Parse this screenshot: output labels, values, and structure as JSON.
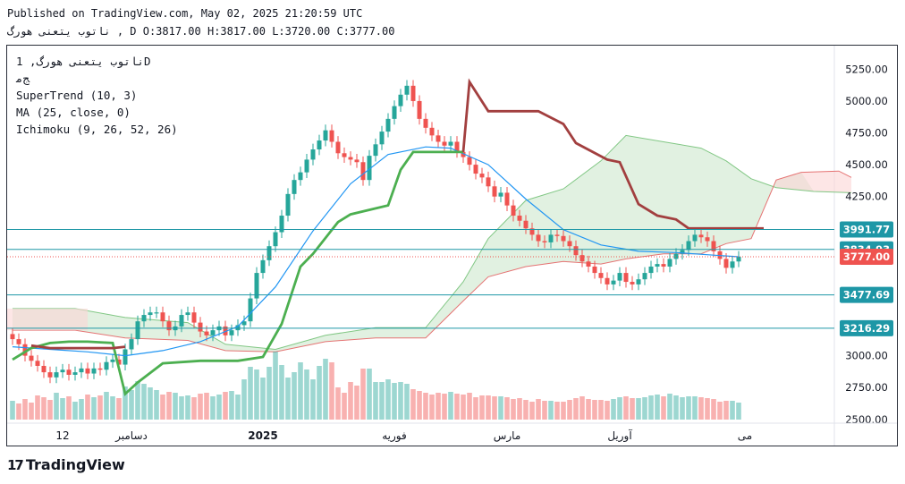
{
  "header": {
    "published": "Published on TradingView.com, May 02, 2025 21:20:59 UTC",
    "ohlc_line": "ناتوب يتعنی هورگ , D O:3817.00 H:3817.00 L:3720.00 C:3777.00"
  },
  "legend": {
    "symbol": "ناتوب يتعنی هورگ, 1D",
    "exchange": "ﺞﻣ",
    "supertrend": "SuperTrend (10, 3)",
    "ma": "MA (25, close, 0)",
    "ichimoku": "Ichimoku (9, 26, 52, 26)"
  },
  "brand": {
    "logo": "17",
    "name": "TradingView"
  },
  "colors": {
    "up": "#26a69a",
    "down": "#ef5350",
    "supertrend_up": "#4caf50",
    "supertrend_down": "#a23f3f",
    "ma": "#2196f3",
    "hline": "#1e97a6",
    "cloud_bull": "#c8e6c9",
    "cloud_bear": "#fbd5d5"
  },
  "chart_data": {
    "type": "candlestick",
    "y_axis": {
      "min": 2400,
      "max": 5400,
      "ticks": [
        2500,
        2750,
        3000,
        3250,
        3500,
        3750,
        4000,
        4250,
        4500,
        4750,
        5000,
        5250
      ]
    },
    "tick_labels": [
      "2500.00",
      "2750.00",
      "3000.00",
      "3250.00",
      "3500.00",
      "3750.00",
      "4000.00",
      "4250.00",
      "4500.00",
      "4750.00",
      "5000.00",
      "5250.00"
    ],
    "x_labels": [
      {
        "text": "12",
        "i": 8
      },
      {
        "text": "دسامبر",
        "i": 19
      },
      {
        "text": "2025",
        "i": 40
      },
      {
        "text": "فوریه",
        "i": 61
      },
      {
        "text": "مارس",
        "i": 79
      },
      {
        "text": "آوریل",
        "i": 97
      },
      {
        "text": "می",
        "i": 117
      }
    ],
    "horizontal_levels": [
      {
        "value": 3991.77,
        "label": "3991.77"
      },
      {
        "value": 3834.93,
        "label": "3834.93"
      },
      {
        "value": 3477.69,
        "label": "3477.69"
      },
      {
        "value": 3216.29,
        "label": "3216.29"
      }
    ],
    "last_price": {
      "value": 3777.0,
      "label": "3777.00"
    },
    "closes": [
      3130,
      3090,
      3000,
      2960,
      2920,
      2870,
      2830,
      2870,
      2890,
      2850,
      2870,
      2900,
      2860,
      2900,
      2890,
      2950,
      2970,
      2930,
      3050,
      3130,
      3270,
      3320,
      3340,
      3340,
      3270,
      3200,
      3230,
      3320,
      3340,
      3260,
      3190,
      3160,
      3200,
      3230,
      3160,
      3200,
      3240,
      3270,
      3450,
      3650,
      3750,
      3860,
      3970,
      4100,
      4270,
      4380,
      4440,
      4540,
      4620,
      4690,
      4770,
      4680,
      4590,
      4560,
      4540,
      4520,
      4380,
      4570,
      4660,
      4760,
      4860,
      4960,
      5050,
      5120,
      5000,
      4860,
      4790,
      4730,
      4680,
      4650,
      4680,
      4600,
      4560,
      4500,
      4430,
      4400,
      4330,
      4250,
      4280,
      4180,
      4100,
      4060,
      4000,
      3950,
      3900,
      3890,
      3950,
      3940,
      3900,
      3860,
      3790,
      3740,
      3700,
      3650,
      3610,
      3560,
      3590,
      3650,
      3580,
      3560,
      3600,
      3650,
      3700,
      3720,
      3700,
      3760,
      3800,
      3830,
      3900,
      3950,
      3930,
      3900,
      3820,
      3760,
      3690,
      3740,
      3777
    ],
    "volumes": [
      210,
      180,
      230,
      190,
      270,
      250,
      220,
      300,
      240,
      260,
      200,
      230,
      280,
      250,
      270,
      310,
      260,
      240,
      370,
      330,
      430,
      400,
      360,
      330,
      280,
      310,
      300,
      260,
      270,
      250,
      290,
      300,
      260,
      280,
      310,
      320,
      280,
      450,
      590,
      560,
      470,
      590,
      760,
      610,
      470,
      530,
      640,
      560,
      450,
      600,
      680,
      640,
      360,
      300,
      420,
      380,
      570,
      570,
      420,
      420,
      450,
      410,
      420,
      400,
      340,
      320,
      300,
      280,
      300,
      290,
      310,
      290,
      280,
      300,
      250,
      270,
      270,
      260,
      260,
      250,
      230,
      240,
      220,
      200,
      230,
      210,
      210,
      200,
      200,
      220,
      240,
      260,
      230,
      220,
      220,
      210,
      230,
      250,
      260,
      240,
      240,
      250,
      270,
      280,
      260,
      290,
      270,
      250,
      260,
      260,
      250,
      240,
      230,
      200,
      210,
      210,
      190
    ],
    "ma25_points": [
      [
        0,
        3070
      ],
      [
        6,
        3050
      ],
      [
        12,
        3030
      ],
      [
        18,
        3000
      ],
      [
        24,
        3040
      ],
      [
        30,
        3110
      ],
      [
        36,
        3230
      ],
      [
        42,
        3540
      ],
      [
        48,
        3980
      ],
      [
        54,
        4350
      ],
      [
        60,
        4580
      ],
      [
        66,
        4640
      ],
      [
        70,
        4630
      ],
      [
        76,
        4500
      ],
      [
        82,
        4230
      ],
      [
        88,
        3990
      ],
      [
        94,
        3870
      ],
      [
        100,
        3820
      ],
      [
        106,
        3810
      ],
      [
        112,
        3790
      ],
      [
        116,
        3777
      ]
    ],
    "supertrend_up_points": [
      [
        0,
        2970
      ],
      [
        3,
        3060
      ],
      [
        6,
        3100
      ],
      [
        9,
        3110
      ],
      [
        12,
        3110
      ],
      [
        16,
        3100
      ],
      [
        18,
        2700
      ],
      [
        20,
        2790
      ],
      [
        24,
        2940
      ],
      [
        30,
        2960
      ],
      [
        36,
        2960
      ],
      [
        40,
        2990
      ],
      [
        43,
        3250
      ],
      [
        46,
        3700
      ],
      [
        48,
        3800
      ],
      [
        52,
        4050
      ],
      [
        54,
        4110
      ],
      [
        60,
        4180
      ],
      [
        62,
        4460
      ],
      [
        64,
        4600
      ],
      [
        72,
        4600
      ]
    ],
    "supertrend_down_points": [
      [
        3,
        3080
      ],
      [
        6,
        3060
      ],
      [
        16,
        3060
      ],
      [
        18,
        3070
      ]
    ],
    "supertrend_down2_points": [
      [
        72,
        4600
      ],
      [
        73,
        5150
      ],
      [
        76,
        4920
      ],
      [
        84,
        4920
      ],
      [
        88,
        4820
      ],
      [
        90,
        4670
      ],
      [
        95,
        4540
      ],
      [
        97,
        4520
      ],
      [
        100,
        4190
      ],
      [
        103,
        4100
      ],
      [
        106,
        4070
      ],
      [
        108,
        4000
      ],
      [
        120,
        4000
      ]
    ],
    "cloud_a_points": [
      [
        0,
        3370
      ],
      [
        10,
        3370
      ],
      [
        18,
        3300
      ],
      [
        28,
        3260
      ],
      [
        34,
        3090
      ],
      [
        42,
        3050
      ],
      [
        50,
        3160
      ],
      [
        58,
        3220
      ],
      [
        66,
        3220
      ],
      [
        72,
        3580
      ],
      [
        76,
        3920
      ],
      [
        82,
        4220
      ],
      [
        88,
        4310
      ],
      [
        94,
        4530
      ],
      [
        98,
        4730
      ],
      [
        104,
        4680
      ],
      [
        110,
        4630
      ],
      [
        114,
        4530
      ],
      [
        118,
        4390
      ],
      [
        122,
        4320
      ],
      [
        128,
        4290
      ],
      [
        134,
        4280
      ]
    ],
    "cloud_b_points": [
      [
        0,
        3200
      ],
      [
        10,
        3200
      ],
      [
        18,
        3140
      ],
      [
        28,
        3120
      ],
      [
        34,
        3040
      ],
      [
        42,
        3030
      ],
      [
        50,
        3110
      ],
      [
        58,
        3140
      ],
      [
        66,
        3140
      ],
      [
        72,
        3430
      ],
      [
        76,
        3620
      ],
      [
        82,
        3700
      ],
      [
        88,
        3740
      ],
      [
        94,
        3720
      ],
      [
        98,
        3760
      ],
      [
        104,
        3800
      ],
      [
        110,
        3800
      ],
      [
        114,
        3880
      ],
      [
        118,
        3920
      ],
      [
        122,
        4380
      ],
      [
        126,
        4440
      ],
      [
        132,
        4450
      ],
      [
        134,
        4400
      ]
    ]
  }
}
